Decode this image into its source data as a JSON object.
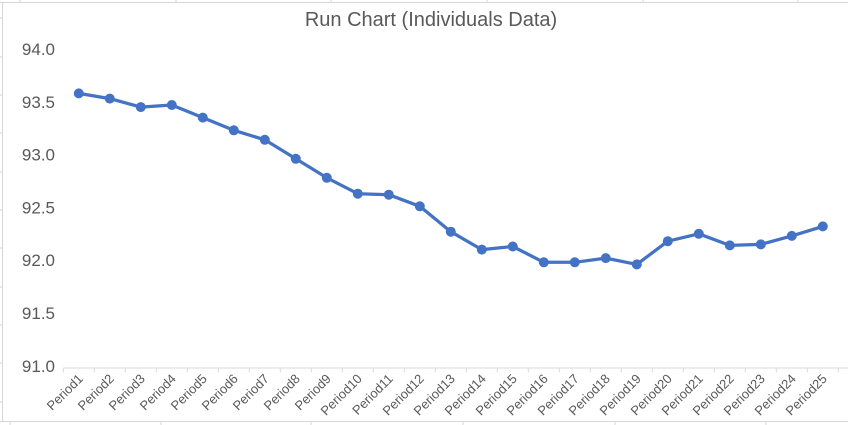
{
  "chart_data": {
    "type": "line",
    "title": "Run Chart (Individuals Data)",
    "categories": [
      "Period1",
      "Period2",
      "Period3",
      "Period4",
      "Period5",
      "Period6",
      "Period7",
      "Period8",
      "Period9",
      "Period10",
      "Period11",
      "Period12",
      "Period13",
      "Period14",
      "Period15",
      "Period16",
      "Period17",
      "Period18",
      "Period19",
      "Period20",
      "Period21",
      "Period22",
      "Period23",
      "Period24",
      "Period25"
    ],
    "values": [
      93.58,
      93.53,
      93.45,
      93.47,
      93.35,
      93.23,
      93.14,
      92.96,
      92.78,
      92.63,
      92.62,
      92.51,
      92.27,
      92.1,
      92.13,
      91.98,
      91.98,
      92.02,
      91.96,
      92.18,
      92.25,
      92.14,
      92.15,
      92.23,
      92.32
    ],
    "xlabel": "",
    "ylabel": "",
    "ylim": [
      91.0,
      94.0
    ],
    "ytick_step": 0.5,
    "ytick_labels": [
      "94.0",
      "93.5",
      "93.0",
      "92.5",
      "92.0",
      "91.5",
      "91.0"
    ],
    "grid": false,
    "legend": "none",
    "marker": "circle",
    "colors": {
      "series": "#4472C4",
      "text": "#595959",
      "axis_line": "#D9D9D9",
      "sheet_line": "#D6D6D6"
    }
  }
}
